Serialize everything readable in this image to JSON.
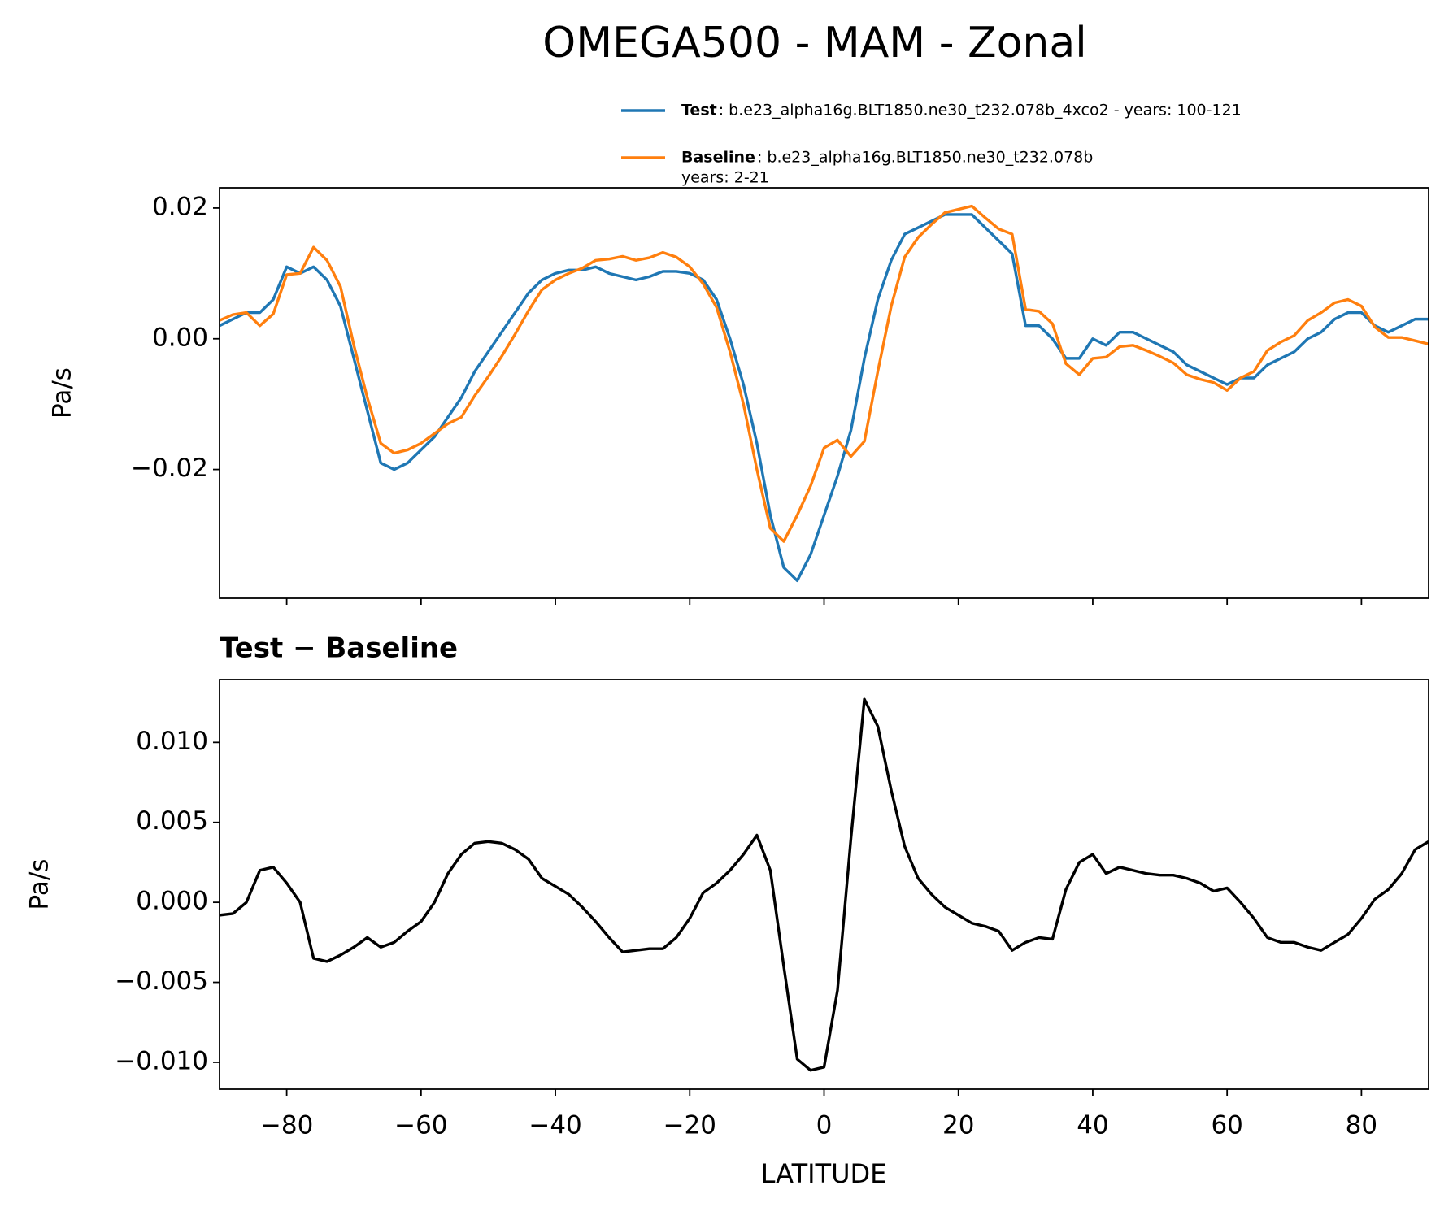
{
  "chart_data": [
    {
      "type": "line",
      "title": "OMEGA500 - MAM - Zonal",
      "ylabel": "Pa/s",
      "x": [
        -90,
        -88,
        -86,
        -84,
        -82,
        -80,
        -78,
        -76,
        -74,
        -72,
        -70,
        -68,
        -66,
        -64,
        -62,
        -60,
        -58,
        -56,
        -54,
        -52,
        -50,
        -48,
        -46,
        -44,
        -42,
        -40,
        -38,
        -36,
        -34,
        -32,
        -30,
        -28,
        -26,
        -24,
        -22,
        -20,
        -18,
        -16,
        -14,
        -12,
        -10,
        -8,
        -6,
        -4,
        -2,
        0,
        2,
        4,
        6,
        8,
        10,
        12,
        14,
        16,
        18,
        20,
        22,
        24,
        26,
        28,
        30,
        32,
        34,
        36,
        38,
        40,
        42,
        44,
        46,
        48,
        50,
        52,
        54,
        56,
        58,
        60,
        62,
        64,
        66,
        68,
        70,
        72,
        74,
        76,
        78,
        80,
        82,
        84,
        86,
        88,
        90
      ],
      "series": [
        {
          "name": "Test",
          "desc": [
            ": b.e23_alpha16g.BLT1850.ne30_t232.078b_4xco2 - years: 100-121"
          ],
          "color": "#1f77b4",
          "values": [
            0.002,
            0.003,
            0.004,
            0.004,
            0.006,
            0.011,
            0.01,
            0.011,
            0.009,
            0.005,
            -0.003,
            -0.011,
            -0.019,
            -0.02,
            -0.019,
            -0.017,
            -0.015,
            -0.012,
            -0.009,
            -0.005,
            -0.002,
            0.001,
            0.004,
            0.007,
            0.009,
            0.01,
            0.0105,
            0.0105,
            0.011,
            0.01,
            0.0095,
            0.009,
            0.0095,
            0.0103,
            0.0103,
            0.01,
            0.009,
            0.006,
            0.0,
            -0.007,
            -0.016,
            -0.027,
            -0.035,
            -0.037,
            -0.033,
            -0.027,
            -0.021,
            -0.014,
            -0.003,
            0.006,
            0.012,
            0.016,
            0.017,
            0.018,
            0.019,
            0.019,
            0.019,
            0.017,
            0.015,
            0.013,
            0.002,
            0.002,
            0.0,
            -0.003,
            -0.003,
            0.0,
            -0.001,
            0.001,
            0.001,
            0.0,
            -0.001,
            -0.002,
            -0.004,
            -0.005,
            -0.006,
            -0.007,
            -0.006,
            -0.006,
            -0.004,
            -0.003,
            -0.002,
            0.0,
            0.001,
            0.003,
            0.004,
            0.004,
            0.002,
            0.001,
            0.002,
            0.003,
            0.003
          ]
        },
        {
          "name": "Baseline",
          "desc": [
            ": b.e23_alpha16g.BLT1850.ne30_t232.078b",
            "years: 2-21"
          ],
          "color": "#ff7f0e",
          "values": [
            0.0028,
            0.0037,
            0.004,
            0.002,
            0.0038,
            0.0098,
            0.01,
            0.014,
            0.012,
            0.008,
            -0.001,
            -0.009,
            -0.016,
            -0.0175,
            -0.017,
            -0.016,
            -0.0145,
            -0.013,
            -0.012,
            -0.0087,
            -0.0058,
            -0.0027,
            0.0007,
            0.0043,
            0.0075,
            0.009,
            0.01,
            0.0108,
            0.012,
            0.0122,
            0.0126,
            0.012,
            0.0124,
            0.0132,
            0.0125,
            0.011,
            0.0084,
            0.0048,
            -0.002,
            -0.01,
            -0.02,
            -0.029,
            -0.031,
            -0.027,
            -0.0225,
            -0.0167,
            -0.0155,
            -0.018,
            -0.0157,
            -0.005,
            0.005,
            0.0125,
            0.0155,
            0.0175,
            0.0193,
            0.0198,
            0.0203,
            0.0185,
            0.0168,
            0.016,
            0.0045,
            0.0042,
            0.0023,
            -0.0038,
            -0.0055,
            -0.003,
            -0.0028,
            -0.0012,
            -0.001,
            -0.0018,
            -0.0027,
            -0.0037,
            -0.0055,
            -0.0062,
            -0.0067,
            -0.0079,
            -0.006,
            -0.005,
            -0.0018,
            -0.0005,
            0.0005,
            0.0028,
            0.004,
            0.0055,
            0.006,
            0.005,
            0.0018,
            0.0002,
            0.0002,
            -0.0003,
            -0.0008
          ]
        }
      ],
      "xlim": [
        -90,
        90
      ],
      "xticks": [
        -80,
        -60,
        -40,
        -20,
        0,
        20,
        40,
        60,
        80
      ],
      "ylim": [
        -0.0397,
        0.0231
      ],
      "yticks": [
        {
          "value": -0.02,
          "label": "−0.02"
        },
        {
          "value": 0,
          "label": "0.00"
        },
        0.02
      ]
    },
    {
      "type": "line",
      "title": "Test − Baseline",
      "ylabel": "Pa/s",
      "xlabel": "LATITUDE",
      "x": [
        -90,
        -88,
        -86,
        -84,
        -82,
        -80,
        -78,
        -76,
        -74,
        -72,
        -70,
        -68,
        -66,
        -64,
        -62,
        -60,
        -58,
        -56,
        -54,
        -52,
        -50,
        -48,
        -46,
        -44,
        -42,
        -40,
        -38,
        -36,
        -34,
        -32,
        -30,
        -28,
        -26,
        -24,
        -22,
        -20,
        -18,
        -16,
        -14,
        -12,
        -10,
        -8,
        -6,
        -4,
        -2,
        0,
        2,
        4,
        6,
        8,
        10,
        12,
        14,
        16,
        18,
        20,
        22,
        24,
        26,
        28,
        30,
        32,
        34,
        36,
        38,
        40,
        42,
        44,
        46,
        48,
        50,
        52,
        54,
        56,
        58,
        60,
        62,
        64,
        66,
        68,
        70,
        72,
        74,
        76,
        78,
        80,
        82,
        84,
        86,
        88,
        90
      ],
      "color": "#000000",
      "values": [
        -0.0008,
        -0.0007,
        0.0,
        0.002,
        0.0022,
        0.0012,
        0.0,
        -0.0035,
        -0.0037,
        -0.0033,
        -0.0028,
        -0.0022,
        -0.0028,
        -0.0025,
        -0.0018,
        -0.0012,
        0.0,
        0.0018,
        0.003,
        0.0037,
        0.0038,
        0.0037,
        0.0033,
        0.0027,
        0.0015,
        0.001,
        0.0005,
        -0.0003,
        -0.0012,
        -0.0022,
        -0.0031,
        -0.003,
        -0.0029,
        -0.0029,
        -0.0022,
        -0.001,
        0.0006,
        0.0012,
        0.002,
        0.003,
        0.0042,
        0.002,
        -0.004,
        -0.0098,
        -0.0105,
        -0.0103,
        -0.0055,
        0.004,
        0.0127,
        0.011,
        0.007,
        0.0035,
        0.0015,
        0.0005,
        -0.0003,
        -0.0008,
        -0.0013,
        -0.0015,
        -0.0018,
        -0.003,
        -0.0025,
        -0.0022,
        -0.0023,
        0.0008,
        0.0025,
        0.003,
        0.0018,
        0.0022,
        0.002,
        0.0018,
        0.0017,
        0.0017,
        0.0015,
        0.0012,
        0.0007,
        0.0009,
        0.0,
        -0.001,
        -0.0022,
        -0.0025,
        -0.0025,
        -0.0028,
        -0.003,
        -0.0025,
        -0.002,
        -0.001,
        0.0002,
        0.0008,
        0.0018,
        0.0033,
        0.0038
      ],
      "xlim": [
        -90,
        90
      ],
      "xticks": [
        {
          "value": -80,
          "label": "−80"
        },
        {
          "value": -60,
          "label": "−60"
        },
        {
          "value": -40,
          "label": "−40"
        },
        {
          "value": -20,
          "label": "−20"
        },
        0,
        20,
        40,
        60,
        80
      ],
      "ylim": [
        -0.01168,
        0.01393
      ],
      "yticks": [
        {
          "value": -0.01,
          "label": "−0.010"
        },
        {
          "value": -0.005,
          "label": "−0.005"
        },
        {
          "value": 0,
          "label": "0.000"
        },
        {
          "value": 0.005,
          "label": "0.005"
        },
        {
          "value": 0.01,
          "label": "0.010"
        }
      ]
    }
  ]
}
